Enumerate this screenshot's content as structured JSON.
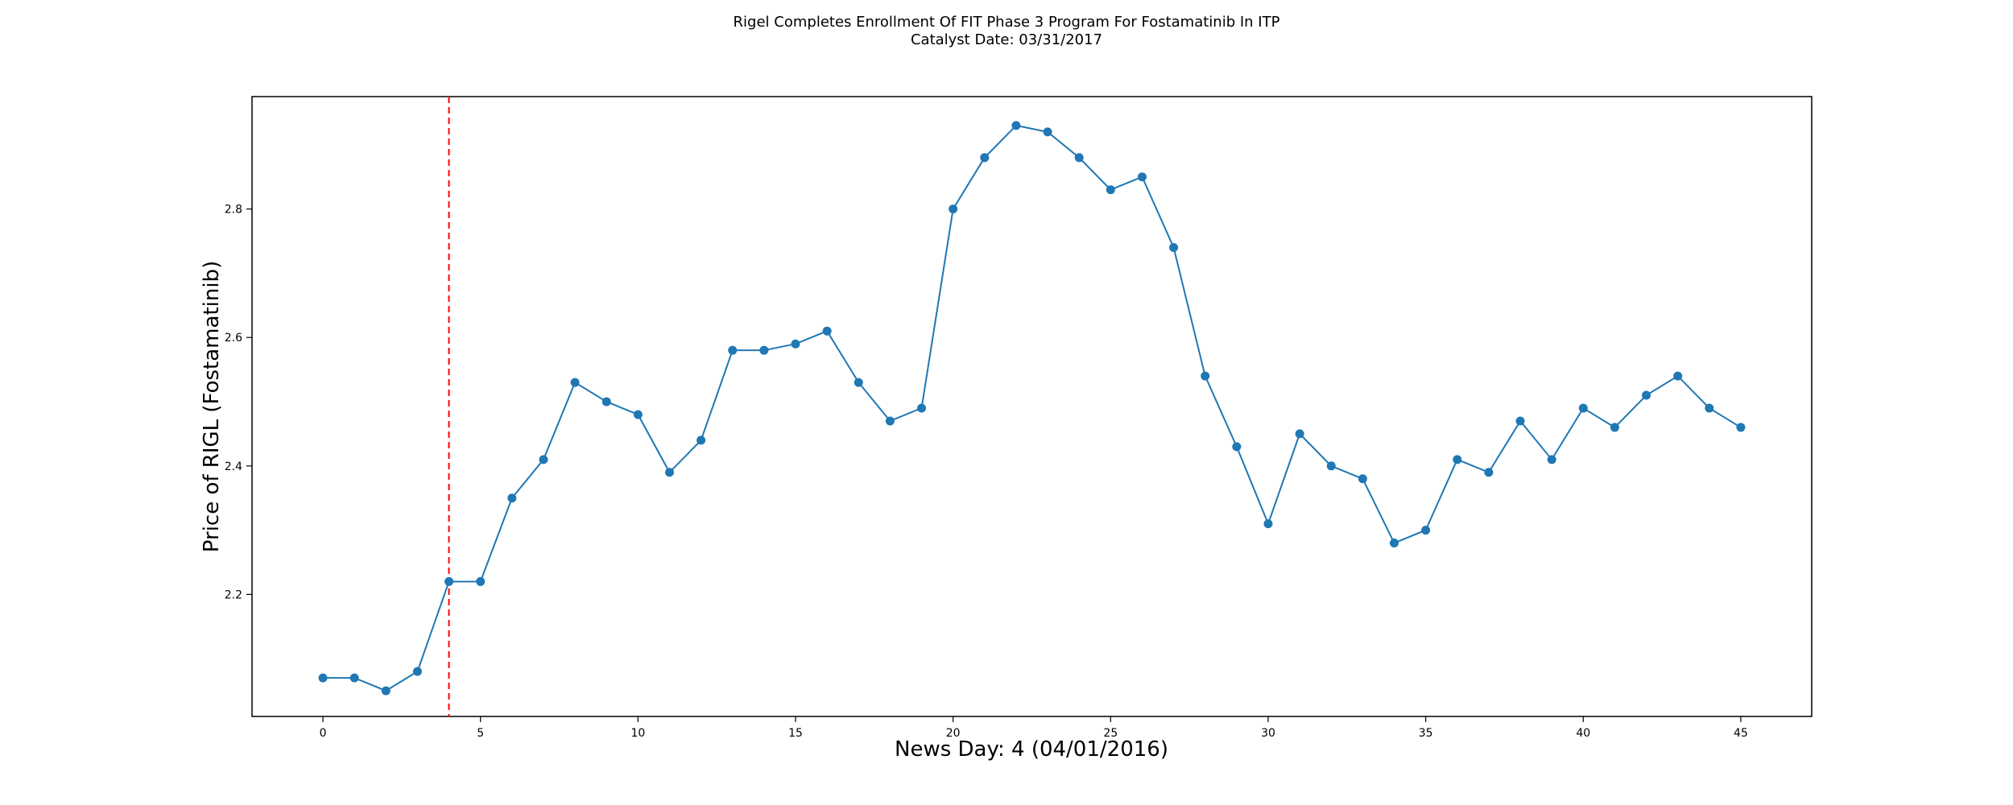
{
  "chart_data": {
    "type": "line",
    "title": "Rigel Completes Enrollment Of FIT Phase 3 Program For Fostamatinib In ITP",
    "subtitle": "Catalyst Date: 03/31/2017",
    "xlabel": "News Day: 4 (04/01/2016)",
    "ylabel": "Price of RIGL (Fostamatinib)",
    "xlim": [
      -2.25,
      47.25
    ],
    "ylim": [
      2.01,
      2.975
    ],
    "xticks": [
      0,
      5,
      10,
      15,
      20,
      25,
      30,
      35,
      40,
      45
    ],
    "yticks": [
      2.2,
      2.4,
      2.6,
      2.8
    ],
    "grid": false,
    "series": [
      {
        "color": "#1f77b4",
        "marker": "circle",
        "x": [
          0,
          1,
          2,
          3,
          4,
          5,
          6,
          7,
          8,
          9,
          10,
          11,
          12,
          13,
          14,
          15,
          16,
          17,
          18,
          19,
          20,
          21,
          22,
          23,
          24,
          25,
          26,
          27,
          28,
          29,
          30,
          31,
          32,
          33,
          34,
          35,
          36,
          37,
          38,
          39,
          40,
          41,
          42,
          43,
          44,
          45
        ],
        "values": [
          2.07,
          2.07,
          2.05,
          2.08,
          2.22,
          2.22,
          2.35,
          2.41,
          2.53,
          2.5,
          2.48,
          2.39,
          2.44,
          2.58,
          2.58,
          2.59,
          2.61,
          2.53,
          2.47,
          2.49,
          2.8,
          2.88,
          2.93,
          2.92,
          2.88,
          2.83,
          2.85,
          2.74,
          2.54,
          2.43,
          2.31,
          2.45,
          2.4,
          2.38,
          2.28,
          2.3,
          2.41,
          2.39,
          2.47,
          2.41,
          2.49,
          2.46,
          2.51,
          2.54,
          2.49,
          2.46
        ]
      }
    ],
    "annotations": [
      {
        "type": "vline",
        "x": 4,
        "color": "#ff0000",
        "style": "dashed"
      }
    ]
  }
}
